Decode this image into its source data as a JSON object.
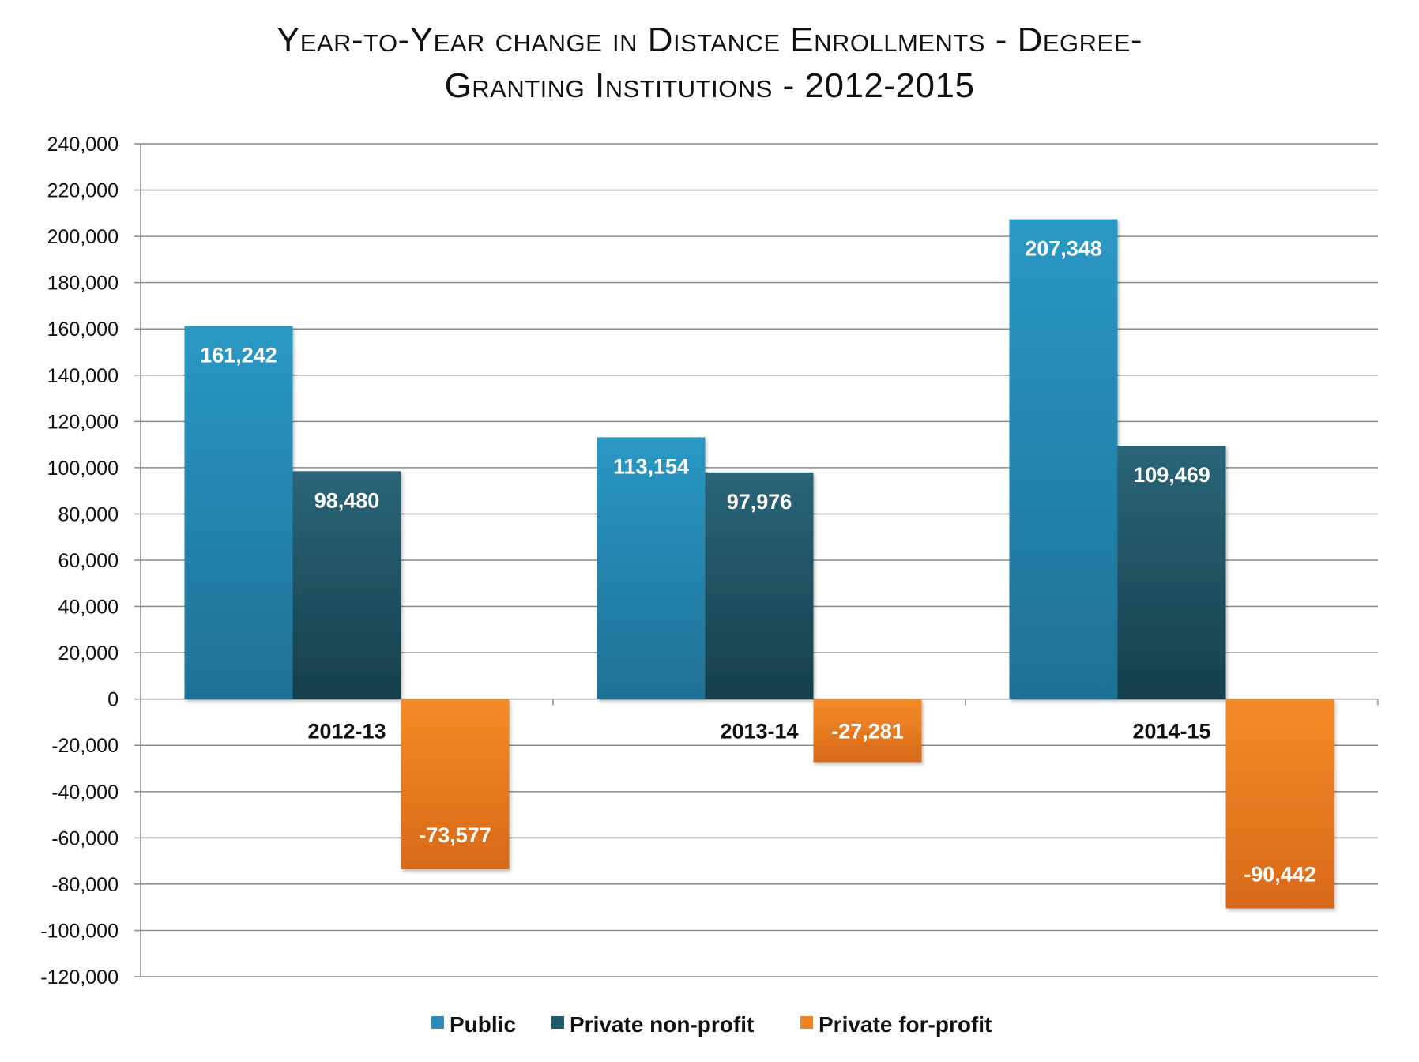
{
  "chart_data": {
    "type": "bar",
    "title_line1": "Year-to-Year change in Distance Enrollments - Degree-",
    "title_line2": "Granting Institutions - 2012-2015",
    "categories": [
      "2012-13",
      "2013-14",
      "2014-15"
    ],
    "series": [
      {
        "name": "Public",
        "color": "#2a8fb8",
        "values": [
          161242,
          113154,
          207348
        ],
        "labels": [
          "161,242",
          "113,154",
          "207,348"
        ]
      },
      {
        "name": "Private non-profit",
        "color": "#235a6a",
        "values": [
          98480,
          97976,
          109469
        ],
        "labels": [
          "98,480",
          "97,976",
          "109,469"
        ]
      },
      {
        "name": "Private for-profit",
        "color": "#f0841f",
        "values": [
          -73577,
          -27281,
          -90442
        ],
        "labels": [
          "-73,577",
          "-27,281",
          "-90,442"
        ]
      }
    ],
    "ylim": [
      -120000,
      240000
    ],
    "y_ticks": [
      240000,
      220000,
      200000,
      180000,
      160000,
      140000,
      120000,
      100000,
      80000,
      60000,
      40000,
      20000,
      0,
      -20000,
      -40000,
      -60000,
      -80000,
      -100000,
      -120000
    ],
    "y_tick_labels": [
      "240,000",
      "220,000",
      "200,000",
      "180,000",
      "160,000",
      "140,000",
      "120,000",
      "100,000",
      "80,000",
      "60,000",
      "40,000",
      "20,000",
      "0",
      "-20,000",
      "-40,000",
      "-60,000",
      "-80,000",
      "-100,000",
      "-120,000"
    ],
    "grid": true,
    "legend": "bottom",
    "xlabel": "",
    "ylabel": ""
  }
}
